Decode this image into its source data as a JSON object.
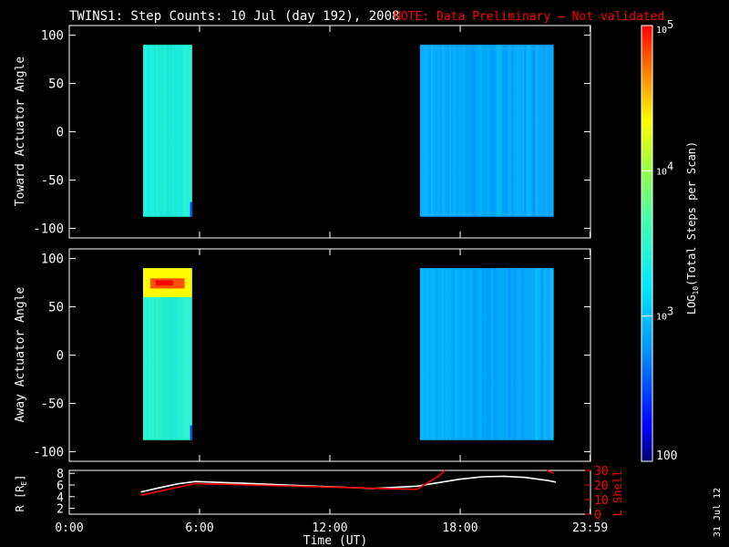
{
  "title": {
    "main": "TWINS1: Step Counts: 10 Jul (day 192), 2008",
    "note": "NOTE: Data Preliminary – Not validated",
    "note_color": "#ff0000"
  },
  "date_stamp": "31 Jul 12",
  "colorbar": {
    "label": "LOG10(Total Steps per Scan)",
    "label_base": "LOG",
    "label_sub": "10",
    "label_rest": "(Total Steps per Scan)",
    "scale": "log",
    "range": [
      100,
      100000
    ],
    "ticks": [
      {
        "value": 100,
        "text": "100"
      },
      {
        "value": 1000,
        "base": "10",
        "exp": "3"
      },
      {
        "value": 10000,
        "base": "10",
        "exp": "4"
      },
      {
        "value": 100000,
        "base": "10",
        "exp": "5"
      }
    ]
  },
  "x_axis": {
    "label": "Time (UT)",
    "ticks": [
      {
        "value": 0,
        "text": "0:00"
      },
      {
        "value": 6,
        "text": "6:00"
      },
      {
        "value": 12,
        "text": "12:00"
      },
      {
        "value": 18,
        "text": "18:00"
      },
      {
        "value": 23.983,
        "text": "23:59"
      }
    ]
  },
  "chart_data": [
    {
      "type": "heatmap",
      "ylabel": "Toward Actuator Angle",
      "xlim": [
        0,
        24
      ],
      "ylim": [
        -110,
        110
      ],
      "yticks": [
        100,
        50,
        0,
        -50,
        -100
      ],
      "blocks": [
        {
          "x_start": 3.4,
          "x_end": 5.65,
          "y_range": [
            -88,
            90
          ],
          "level_log10": 3.4,
          "bands": [
            {
              "y_range": [
                -88,
                90
              ],
              "level_log10": 3.45
            }
          ]
        },
        {
          "x_start": 16.15,
          "x_end": 22.3,
          "y_range": [
            -88,
            90
          ],
          "level_log10": 2.9,
          "bands": [
            {
              "y_range": [
                -88,
                90
              ],
              "level_log10": 2.9
            }
          ]
        }
      ]
    },
    {
      "type": "heatmap",
      "ylabel": "Away Actuator Angle",
      "xlim": [
        0,
        24
      ],
      "ylim": [
        -110,
        110
      ],
      "yticks": [
        100,
        50,
        0,
        -50,
        -100
      ],
      "blocks": [
        {
          "x_start": 3.4,
          "x_end": 5.65,
          "y_range": [
            -88,
            90
          ],
          "level_log10": 3.45,
          "bands": [
            {
              "y_range": [
                60,
                90
              ],
              "level_log10": 4.7
            }
          ]
        },
        {
          "x_start": 16.15,
          "x_end": 22.3,
          "y_range": [
            -88,
            90
          ],
          "level_log10": 2.9,
          "bands": [
            {
              "y_range": [
                -88,
                90
              ],
              "level_log10": 2.9
            }
          ]
        }
      ]
    },
    {
      "type": "line",
      "xlim": [
        0,
        24
      ],
      "left_axis": {
        "label": "R [RE]",
        "label_base": "R [R",
        "label_sub": "E",
        "label_end": "]",
        "ylim": [
          1,
          8.5
        ],
        "ticks": [
          2,
          4,
          6,
          8
        ]
      },
      "right_axis": {
        "label": "L Shell",
        "ylim": [
          0,
          30
        ],
        "ticks": [
          0,
          10,
          20,
          30
        ],
        "color": "#ff0000"
      },
      "series": [
        {
          "axis": "left",
          "color": "#ffffff",
          "x": [
            3.3,
            4.0,
            5.0,
            5.8,
            8.0,
            10.0,
            12.0,
            14.0,
            16.0,
            17.0,
            18.0,
            19.0,
            20.0,
            21.0,
            22.0,
            22.4
          ],
          "y": [
            4.8,
            5.4,
            6.2,
            6.6,
            6.3,
            6.0,
            5.7,
            5.4,
            5.8,
            6.4,
            7.0,
            7.4,
            7.5,
            7.3,
            6.8,
            6.5
          ]
        },
        {
          "axis": "right",
          "color": "#ff0000",
          "x": [
            3.3,
            5.8,
            16.0,
            17.0,
            17.3
          ],
          "y": [
            13,
            21,
            17,
            26,
            30
          ]
        },
        {
          "axis": "right",
          "color": "#ff0000",
          "x": [
            22.0,
            22.3
          ],
          "y": [
            30,
            28
          ]
        }
      ]
    }
  ]
}
